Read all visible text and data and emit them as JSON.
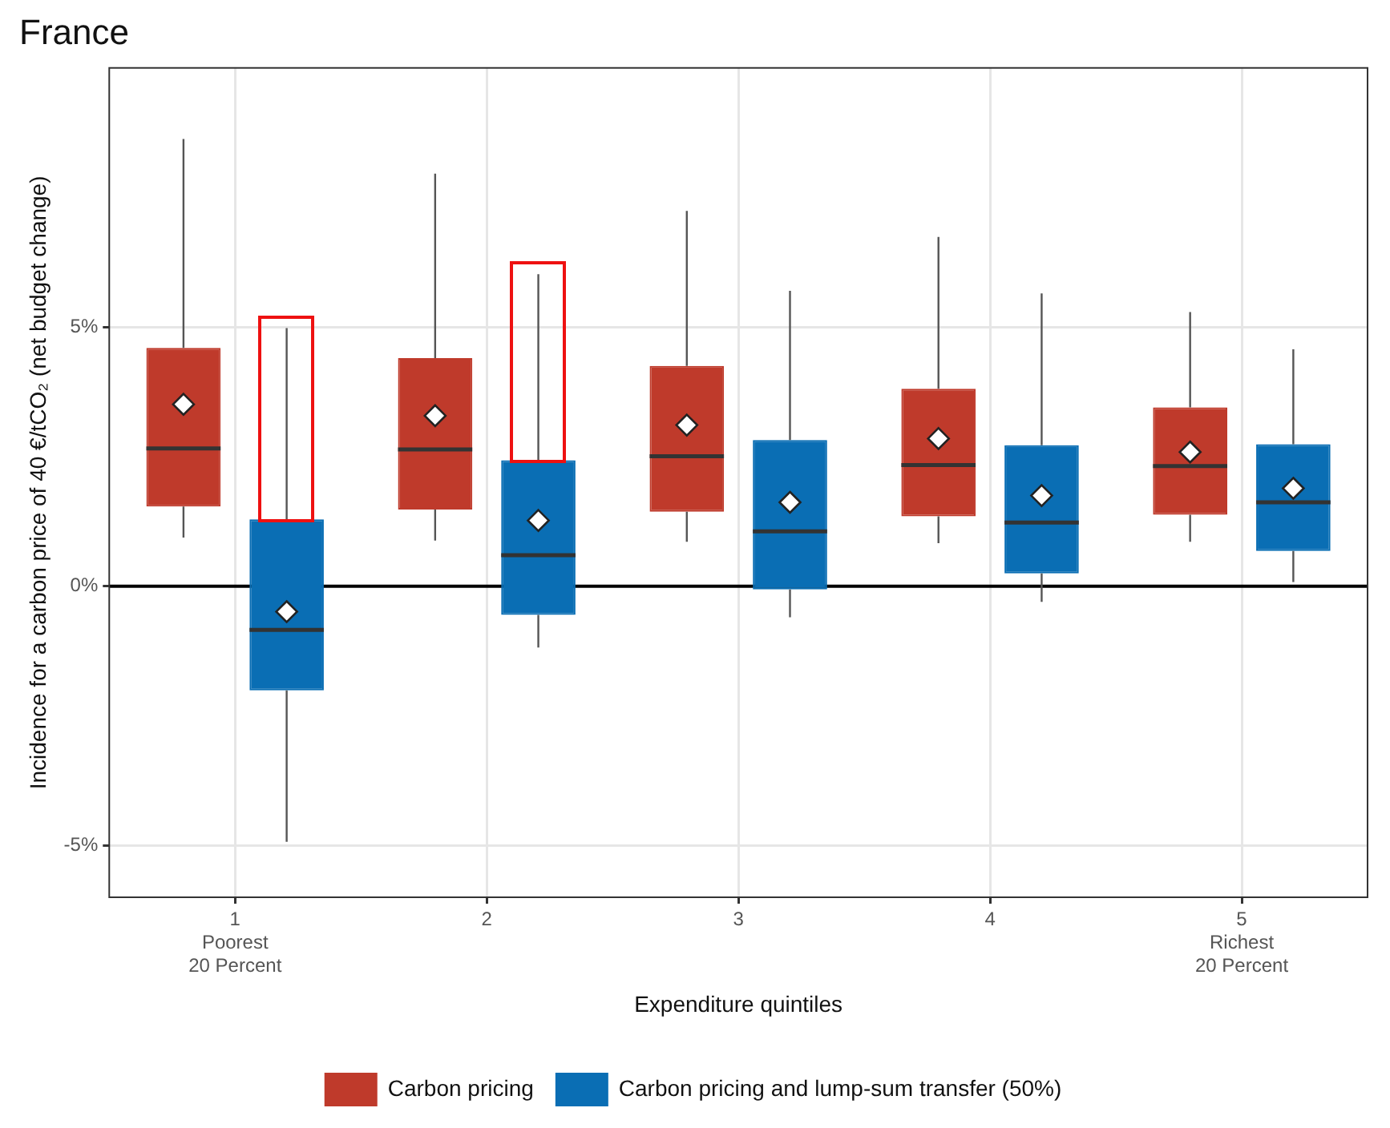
{
  "chart_data": {
    "type": "box",
    "title": "France",
    "xlabel": "Expenditure quintiles",
    "ylabel": "Incidence for a carbon price of 40 €/tCO₂ (net budget change)",
    "categories": [
      "1\nPoorest\n20 Percent",
      "2",
      "3",
      "4",
      "5\nRichest\n20 Percent"
    ],
    "series": [
      {
        "name": "Carbon pricing",
        "color": "#bf3a2b",
        "boxes": [
          {
            "low": 0.94,
            "q1": 1.54,
            "median": 2.66,
            "q3": 4.6,
            "high": 8.63,
            "mean": 3.51
          },
          {
            "low": 0.88,
            "q1": 1.48,
            "median": 2.64,
            "q3": 4.4,
            "high": 7.96,
            "mean": 3.29
          },
          {
            "low": 0.86,
            "q1": 1.44,
            "median": 2.51,
            "q3": 4.25,
            "high": 7.24,
            "mean": 3.11
          },
          {
            "low": 0.83,
            "q1": 1.35,
            "median": 2.34,
            "q3": 3.81,
            "high": 6.74,
            "mean": 2.85
          },
          {
            "low": 0.86,
            "q1": 1.38,
            "median": 2.32,
            "q3": 3.45,
            "high": 5.29,
            "mean": 2.59
          }
        ]
      },
      {
        "name": "Carbon pricing and lump-sum transfer (50%)",
        "color": "#0a6eb4",
        "boxes": [
          {
            "low": -4.93,
            "q1": -2.01,
            "median": -0.84,
            "q3": 1.29,
            "high": 4.98,
            "mean": -0.49
          },
          {
            "low": -1.18,
            "q1": -0.55,
            "median": 0.6,
            "q3": 2.43,
            "high": 6.02,
            "mean": 1.27
          },
          {
            "low": -0.6,
            "q1": -0.06,
            "median": 1.06,
            "q3": 2.82,
            "high": 5.7,
            "mean": 1.62
          },
          {
            "low": -0.3,
            "q1": 0.25,
            "median": 1.23,
            "q3": 2.72,
            "high": 5.65,
            "mean": 1.75
          },
          {
            "low": 0.08,
            "q1": 0.68,
            "median": 1.62,
            "q3": 2.74,
            "high": 4.57,
            "mean": 1.89
          }
        ]
      }
    ],
    "ylim": [
      -6,
      10
    ],
    "yticks": [
      {
        "value": -5,
        "label": "-5%"
      },
      {
        "value": 0,
        "label": "0%"
      },
      {
        "value": 5,
        "label": "5%"
      }
    ],
    "ref_lines": [
      {
        "axis": "y",
        "value": 0,
        "color": "#000000"
      }
    ],
    "grid": true,
    "legend": "bottom"
  }
}
